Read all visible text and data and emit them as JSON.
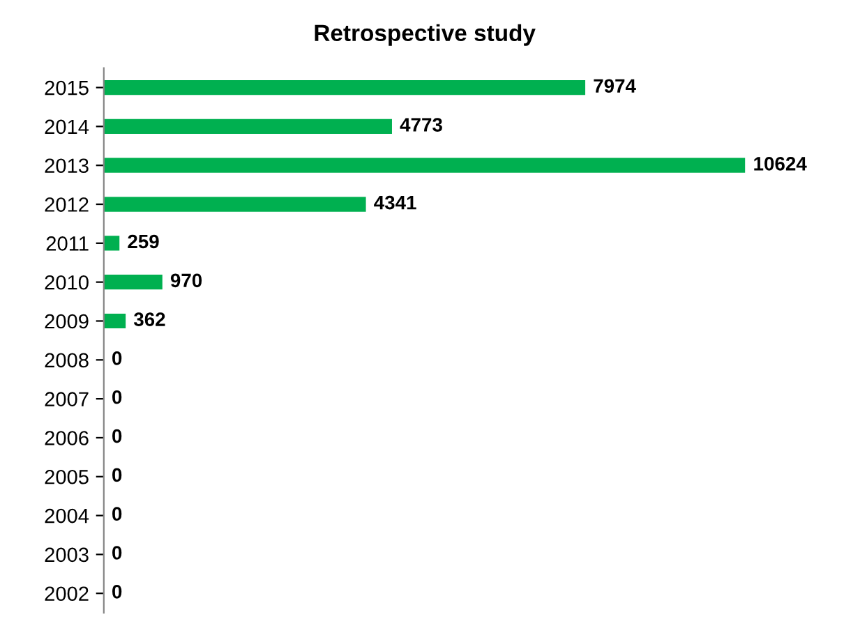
{
  "chart_data": {
    "type": "bar",
    "orientation": "horizontal",
    "title": "Retrospective study",
    "categories": [
      "2015",
      "2014",
      "2013",
      "2012",
      "2011",
      "2010",
      "2009",
      "2008",
      "2007",
      "2006",
      "2005",
      "2004",
      "2003",
      "2002"
    ],
    "values": [
      7974,
      4773,
      10624,
      4341,
      259,
      970,
      362,
      0,
      0,
      0,
      0,
      0,
      0,
      0
    ],
    "color": "#00b050",
    "data_labels": true,
    "grid": false,
    "legend": false,
    "tick_labels": "y"
  }
}
